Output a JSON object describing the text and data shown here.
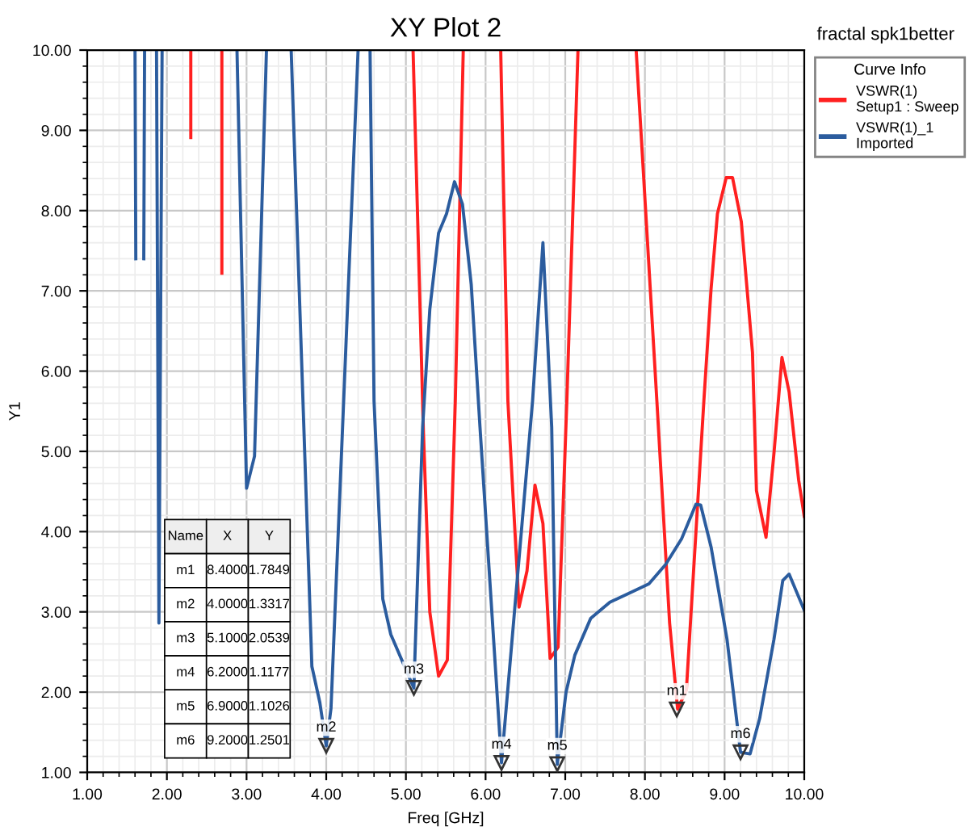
{
  "chart_data": {
    "type": "line",
    "title": "XY Plot 2",
    "xlabel": "Freq [GHz]",
    "ylabel": "Y1",
    "legend_title": "Curve Info",
    "xlim": [
      1,
      10
    ],
    "ylim": [
      1,
      10
    ],
    "xticks": [
      {
        "value": 1,
        "label": "1.00"
      },
      {
        "value": 2,
        "label": "2.00"
      },
      {
        "value": 3,
        "label": "3.00"
      },
      {
        "value": 4,
        "label": "4.00"
      },
      {
        "value": 5,
        "label": "5.00"
      },
      {
        "value": 6,
        "label": "6.00"
      },
      {
        "value": 7,
        "label": "7.00"
      },
      {
        "value": 8,
        "label": "8.00"
      },
      {
        "value": 9,
        "label": "9.00"
      },
      {
        "value": 10,
        "label": "10.00"
      }
    ],
    "yticks": [
      {
        "value": 1,
        "label": "1.00"
      },
      {
        "value": 2,
        "label": "2.00"
      },
      {
        "value": 3,
        "label": "3.00"
      },
      {
        "value": 4,
        "label": "4.00"
      },
      {
        "value": 5,
        "label": "5.00"
      },
      {
        "value": 6,
        "label": "6.00"
      },
      {
        "value": 7,
        "label": "7.00"
      },
      {
        "value": 8,
        "label": "8.00"
      },
      {
        "value": 9,
        "label": "9.00"
      },
      {
        "value": 10,
        "label": "10.00"
      }
    ],
    "grid": true,
    "legend": "top right",
    "marker": "none",
    "line_style": "solid",
    "series": [
      {
        "name": "VSWR(1)\nSetup1 : Sweep",
        "color": "#ff2020",
        "x": [
          2.3,
          2.3,
          2.5,
          2.69,
          2.69,
          3.8,
          5.09,
          5.22,
          5.3,
          5.41,
          5.52,
          5.62,
          5.72,
          5.95,
          6.19,
          6.28,
          6.42,
          6.52,
          6.62,
          6.72,
          6.81,
          6.91,
          7.02,
          7.16,
          7.5,
          7.89,
          8.15,
          8.31,
          8.41,
          8.52,
          8.74,
          8.83,
          8.91,
          9.02,
          9.1,
          9.21,
          9.35,
          9.4,
          9.52,
          9.62,
          9.72,
          9.81,
          9.93,
          10.0
        ],
        "values": [
          10,
          8.91,
          null,
          10,
          7.22,
          null,
          10,
          5.24,
          3.0,
          2.2,
          2.4,
          5.63,
          10,
          null,
          10,
          5.63,
          3.06,
          3.51,
          4.58,
          4.1,
          2.42,
          2.56,
          5.63,
          10,
          null,
          10,
          5.63,
          2.86,
          1.79,
          2.02,
          5.63,
          7.02,
          7.96,
          8.41,
          8.41,
          7.86,
          6.23,
          4.51,
          3.93,
          4.98,
          6.17,
          5.74,
          4.64,
          4.19
        ]
      },
      {
        "name": "VSWR(1)_1\nImported",
        "color": "#2b5c9e",
        "x": [
          1.6,
          1.61,
          1.66,
          1.71,
          1.72,
          1.8,
          1.87,
          1.9,
          1.94,
          2.4,
          2.88,
          3.0,
          3.1,
          3.25,
          3.4,
          3.56,
          3.82,
          3.92,
          4.0,
          4.06,
          4.4,
          4.48,
          4.55,
          4.6,
          4.71,
          4.81,
          5.1,
          5.21,
          5.3,
          5.41,
          5.51,
          5.61,
          5.71,
          5.82,
          5.93,
          6.2,
          6.59,
          6.72,
          6.83,
          6.9,
          7.01,
          7.12,
          7.32,
          7.56,
          7.82,
          8.05,
          8.26,
          8.46,
          8.64,
          8.7,
          8.83,
          9.03,
          9.2,
          9.32,
          9.44,
          9.62,
          9.73,
          9.81,
          10.0
        ],
        "values": [
          10,
          7.4,
          null,
          7.4,
          10,
          null,
          10,
          2.86,
          10,
          null,
          10,
          4.54,
          4.94,
          10,
          null,
          10,
          2.32,
          1.87,
          1.33,
          1.8,
          10,
          null,
          10,
          5.63,
          3.16,
          2.72,
          2.05,
          5.3,
          6.77,
          7.72,
          7.96,
          8.36,
          8.08,
          7.08,
          5.3,
          1.12,
          5.63,
          7.6,
          5.3,
          1.1,
          2.0,
          2.46,
          2.92,
          3.12,
          3.24,
          3.35,
          3.59,
          3.91,
          4.34,
          4.33,
          3.81,
          2.66,
          1.25,
          1.23,
          1.67,
          2.66,
          3.39,
          3.47,
          3.02
        ]
      }
    ],
    "annotations": [
      "fractal spk1better",
      "Name",
      "X",
      "Y",
      "m1",
      "8.4000",
      "1.7849",
      "m2",
      "4.0000",
      "1.3317",
      "m3",
      "5.1000",
      "2.0539",
      "m4",
      "6.2000",
      "1.1177",
      "m5",
      "6.9000",
      "1.1026",
      "m6",
      "9.2000",
      "1.2501",
      {
        "text": "m1",
        "x": 8.4,
        "y": 1.7849
      },
      {
        "text": "m2",
        "x": 4.0,
        "y": 1.3317
      },
      {
        "text": "m3",
        "x": 5.1,
        "y": 2.0539
      },
      {
        "text": "m4",
        "x": 6.2,
        "y": 1.1177
      },
      {
        "text": "m5",
        "x": 6.9,
        "y": 1.1026
      },
      {
        "text": "m6",
        "x": 9.2,
        "y": 1.2501
      }
    ]
  }
}
